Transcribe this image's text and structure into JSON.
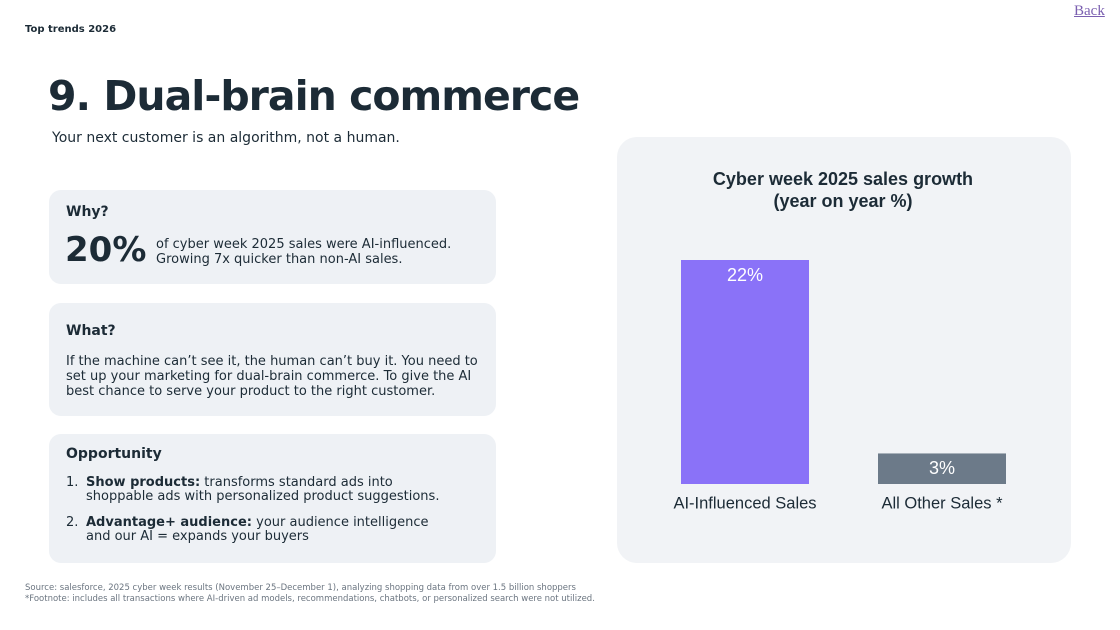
{
  "header": {
    "section": "Top trends 2026",
    "back": "Back",
    "title": "9. Dual-brain commerce",
    "subtitle": "Your next customer is an algorithm, not a human."
  },
  "why": {
    "heading": "Why?",
    "stat": "20%",
    "text": "of cyber week 2025 sales were AI-influenced. Growing 7x quicker than non-AI sales."
  },
  "what": {
    "heading": "What?",
    "text": "If the machine can’t see it, the human can’t buy it. You need to set up your marketing for dual-brain commerce. To give the AI best chance to serve your product to the right customer."
  },
  "opportunity": {
    "heading": "Opportunity",
    "items": [
      {
        "number": "1.",
        "lead": "Show products:",
        "text": "transforms standard ads into shoppable ads with personalized product suggestions."
      },
      {
        "number": "2.",
        "lead": "Advantage+ audience:",
        "text": "your audience intelligence and our AI = expands your buyers"
      }
    ]
  },
  "footer": {
    "source": "Source: salesforce, 2025 cyber week results (November 25–December 1), analyzing shopping data from over 1.5 billion shoppers",
    "footnote": "*Footnote: includes all transactions where AI-driven ad models,  recommendations, chatbots, or personalized search were not utilized."
  },
  "chart_data": {
    "type": "bar",
    "title": "Cyber week 2025 sales growth",
    "subtitle": "(year on year %)",
    "categories": [
      "AI-Influenced Sales",
      "All Other Sales *"
    ],
    "values": [
      22,
      3
    ],
    "value_labels": [
      "22%",
      "3%"
    ],
    "colors": [
      "#8a72f8",
      "#6c7a89"
    ]
  }
}
